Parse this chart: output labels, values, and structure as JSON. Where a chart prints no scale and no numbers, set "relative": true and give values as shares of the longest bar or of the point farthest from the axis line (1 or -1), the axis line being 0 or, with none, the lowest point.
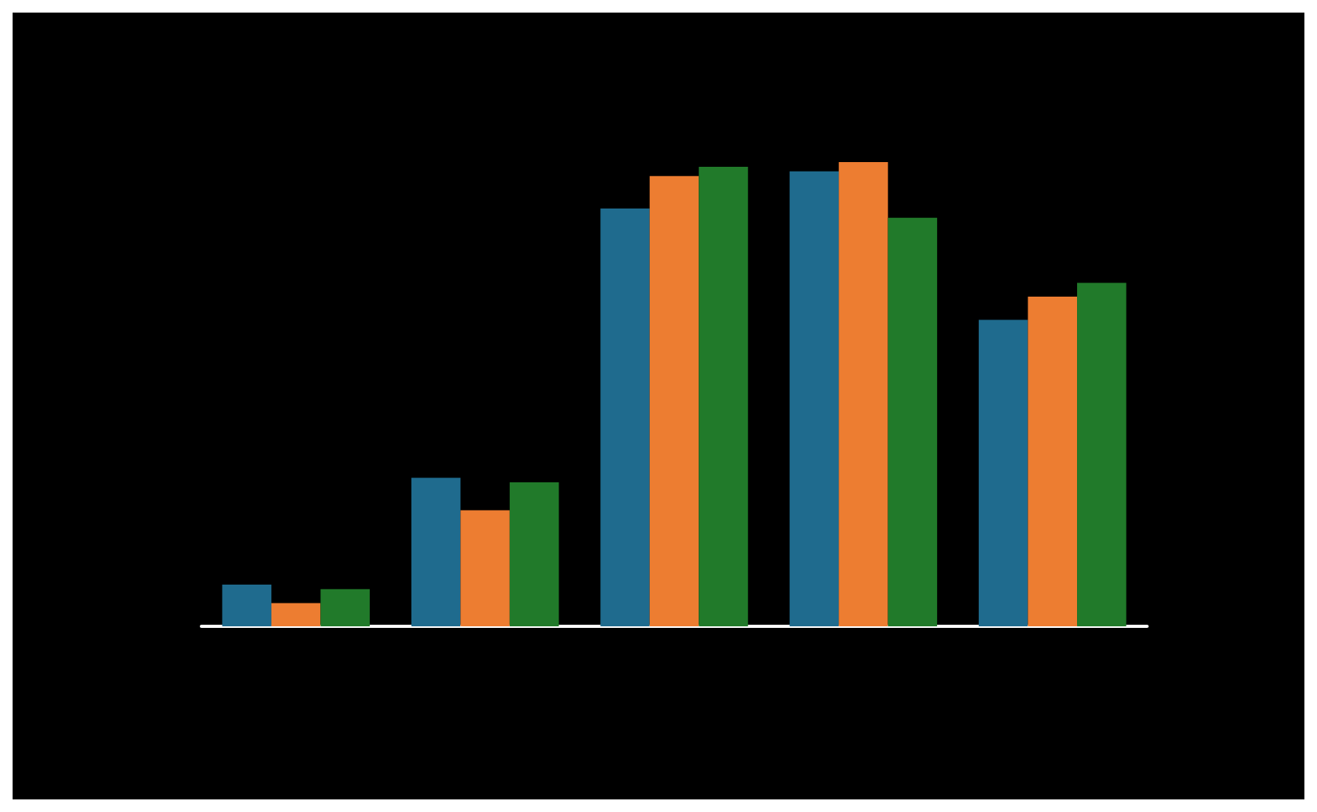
{
  "chart_data": {
    "type": "bar",
    "relative": true,
    "categories": [
      null,
      null,
      null,
      null,
      null
    ],
    "series": [
      {
        "color": "#1f6b8e",
        "values": [
          0.09,
          0.32,
          0.9,
          0.98,
          0.66
        ]
      },
      {
        "color": "#ed7d31",
        "values": [
          0.05,
          0.25,
          0.97,
          1,
          0.71
        ]
      },
      {
        "color": "#217a2a",
        "values": [
          0.08,
          0.31,
          0.99,
          0.88,
          0.74
        ]
      }
    ]
  }
}
